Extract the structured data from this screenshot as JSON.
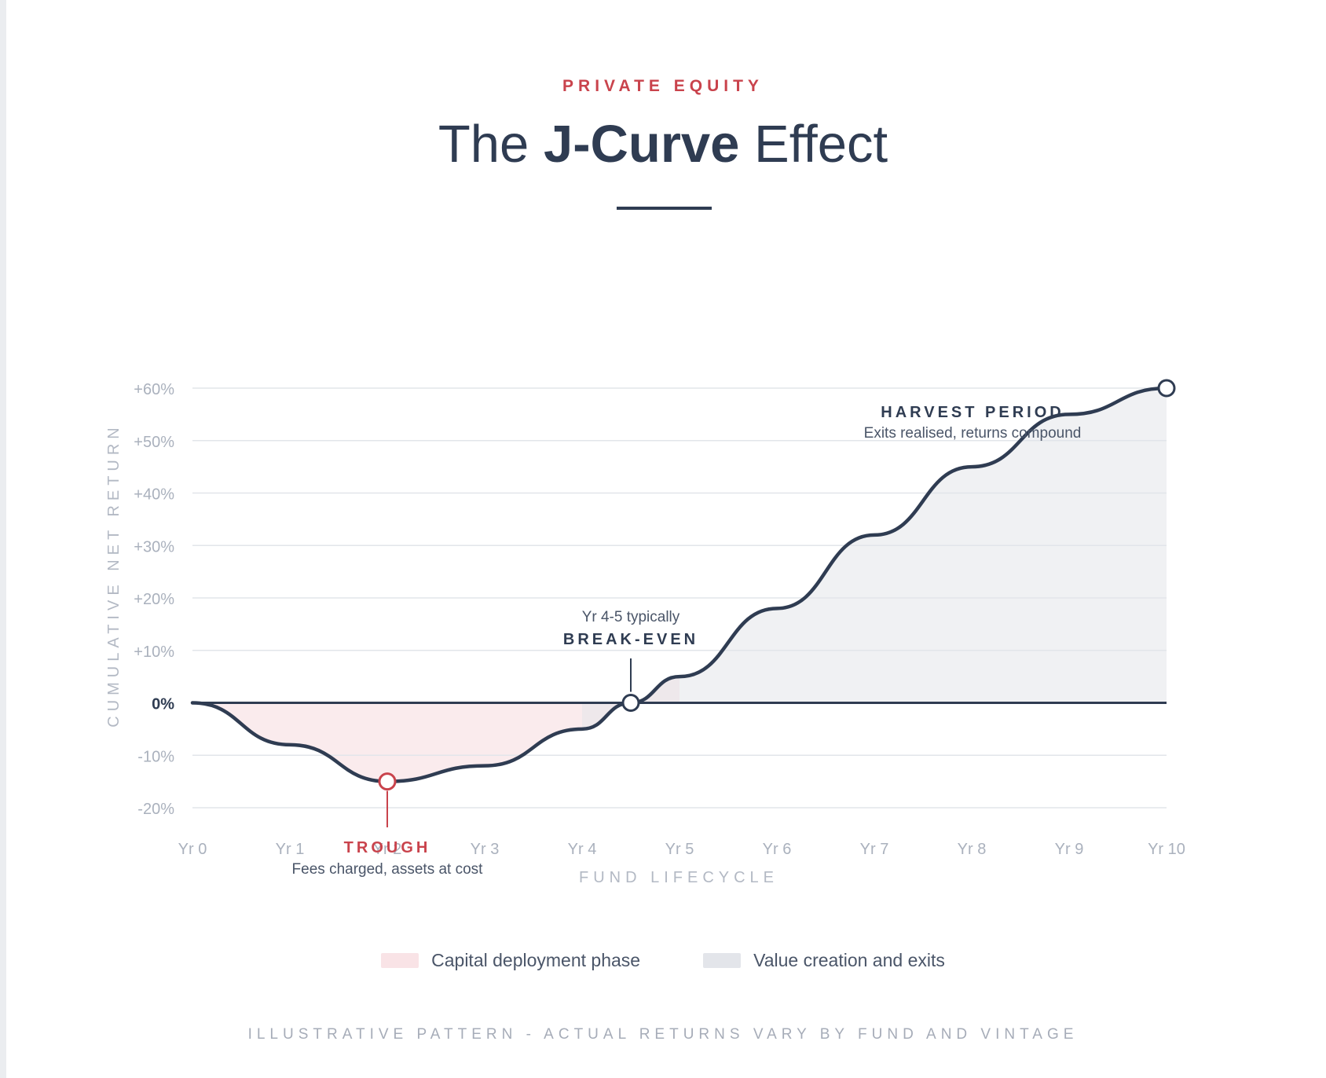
{
  "header": {
    "eyebrow": "PRIVATE EQUITY",
    "title_pre": "The ",
    "title_bold": "J-Curve",
    "title_post": " Effect"
  },
  "chart_data": {
    "type": "area",
    "title": "The J-Curve Effect",
    "xlabel": "FUND LIFECYCLE",
    "ylabel": "CUMULATIVE NET RETURN",
    "x_ticks": [
      "Yr 0",
      "Yr 1",
      "Yr 2",
      "Yr 3",
      "Yr 4",
      "Yr 5",
      "Yr 6",
      "Yr 7",
      "Yr 8",
      "Yr 9",
      "Yr 10"
    ],
    "y_ticks": [
      "+60%",
      "+50%",
      "+40%",
      "+30%",
      "+20%",
      "+10%",
      "0%",
      "-10%",
      "-20%"
    ],
    "xlim": [
      0,
      10
    ],
    "ylim": [
      -20,
      60
    ],
    "grid": true,
    "series": [
      {
        "x": [
          0,
          1,
          2,
          3,
          4,
          4.5,
          5,
          6,
          7,
          8,
          9,
          10
        ],
        "values": [
          0,
          -8,
          -15,
          -12,
          -5,
          0,
          5,
          18,
          32,
          45,
          55,
          60
        ]
      }
    ],
    "regions": [
      {
        "label": "Capital deployment phase",
        "x_start": 0,
        "x_end": 5,
        "color": "#f9e8ea"
      },
      {
        "label": "Value creation and exits",
        "x_start": 4,
        "x_end": 10,
        "color": "#e3e5ea"
      }
    ],
    "markers": [
      {
        "x": 2,
        "y": -15,
        "kind": "trough",
        "color": "#c9434c"
      },
      {
        "x": 4.5,
        "y": 0,
        "kind": "break-even",
        "color": "#2f3c52"
      },
      {
        "x": 10,
        "y": 60,
        "kind": "end",
        "color": "#2f3c52"
      }
    ],
    "annotations": {
      "trough_title": "TROUGH",
      "trough_sub": "Fees charged, assets at cost",
      "breakeven_pre": "Yr 4-5 typically",
      "breakeven_title": "BREAK-EVEN",
      "harvest_title": "HARVEST PERIOD",
      "harvest_sub": "Exits realised, returns compound"
    },
    "colors": {
      "line": "#2f3c52",
      "accent": "#c9434c",
      "grid": "#e2e5ea",
      "tick": "#aab1bd",
      "zero_label": "#2f3c52"
    }
  },
  "legend": [
    {
      "label": "Capital deployment phase",
      "color": "#f9e3e6"
    },
    {
      "label": "Value creation and exits",
      "color": "#e3e5ea"
    }
  ],
  "footnote": "ILLUSTRATIVE PATTERN - ACTUAL RETURNS VARY BY FUND AND VINTAGE"
}
